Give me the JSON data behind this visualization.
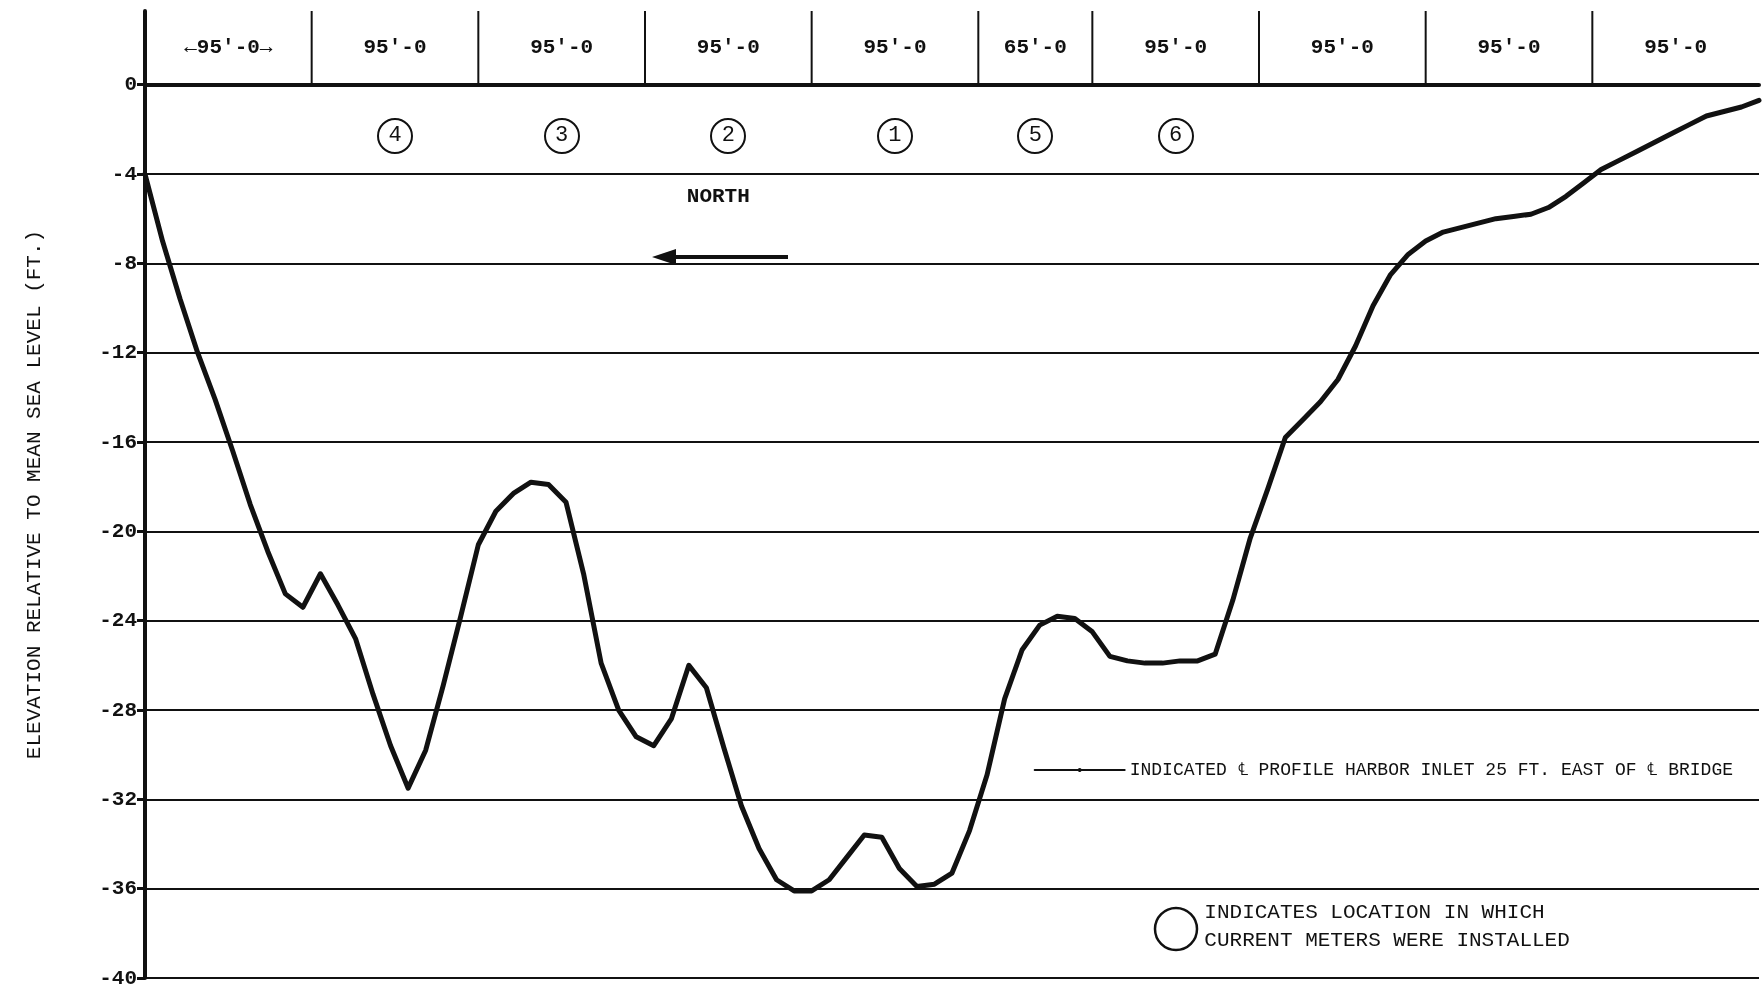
{
  "chart_data": {
    "type": "line",
    "ylabel": "ELEVATION RELATIVE TO MEAN SEA LEVEL (FT.)",
    "categories": [
      null,
      null,
      null,
      null,
      null,
      null,
      null,
      null,
      null,
      null,
      null,
      null,
      null,
      null,
      null,
      null,
      null,
      null,
      null,
      null,
      null,
      null,
      null,
      null,
      null,
      null,
      null,
      null,
      null,
      null,
      null,
      null,
      null,
      null,
      null,
      null,
      null,
      null,
      null,
      null,
      null,
      null,
      null,
      null,
      null,
      null,
      null,
      null,
      null,
      null,
      null,
      null,
      null,
      null,
      null,
      null,
      null,
      null,
      null,
      null,
      null,
      null,
      null,
      null,
      null,
      null,
      null,
      null,
      null,
      null,
      null,
      null,
      null,
      null,
      null,
      null,
      null,
      null,
      null,
      null,
      null,
      null,
      null,
      null,
      null,
      null,
      null,
      null,
      null,
      null,
      null,
      null,
      null
    ],
    "series": [
      {
        "name": "INDICATED ℄ PROFILE HARBOR INLET 25 FT. EAST OF ℄ BRIDGE",
        "color": "#111111",
        "values": [
          -4.0,
          -7.0,
          -9.6,
          -12.0,
          -14.1,
          -16.4,
          -18.8,
          -20.9,
          -22.8,
          -23.4,
          -21.9,
          -23.3,
          -24.8,
          -27.3,
          -29.6,
          -31.5,
          -29.8,
          -26.9,
          -23.8,
          -20.6,
          -19.1,
          -18.3,
          -17.8,
          -17.9,
          -18.7,
          -21.9,
          -25.9,
          -28.0,
          -29.2,
          -29.6,
          -28.4,
          -26.0,
          -27.0,
          -29.7,
          -32.3,
          -34.2,
          -35.6,
          -36.1,
          -36.1,
          -35.6,
          -34.6,
          -33.6,
          -33.7,
          -35.1,
          -35.9,
          -35.8,
          -35.3,
          -33.4,
          -30.9,
          -27.5,
          -25.3,
          -24.2,
          -23.8,
          -23.9,
          -24.5,
          -25.6,
          -25.8,
          -25.9,
          -25.9,
          -25.8,
          -25.8,
          -25.5,
          -23.1,
          -20.3,
          -18.1,
          -15.8,
          -15.0,
          -14.2,
          -13.2,
          -11.7,
          -9.9,
          -8.5,
          -7.6,
          -7.0,
          -6.6,
          -6.4,
          -6.2,
          -6.0,
          -5.9,
          -5.8,
          -5.5,
          -5.0,
          -4.4,
          -3.8,
          -3.4,
          -3.0,
          -2.6,
          -2.2,
          -1.8,
          -1.4,
          -1.2,
          -1.0,
          -0.7
        ]
      }
    ],
    "ylim": [
      -40,
      3.3
    ],
    "yticks": [
      0,
      -4,
      -8,
      -12,
      -16,
      -20,
      -24,
      -28,
      -32,
      -36,
      -40
    ],
    "annotations": [
      "←95'-0→",
      "95'-0",
      "95'-0",
      "95'-0",
      "95'-0",
      "65'-0",
      "95'-0",
      "95'-0",
      "95'-0",
      "95'-0",
      "4",
      "3",
      "2",
      "1",
      "5",
      "6",
      "NORTH",
      "INDICATES LOCATION IN WHICH CURRENT METERS WERE INSTALLED"
    ],
    "grid": "y",
    "legend": "bottom right",
    "marker": "none",
    "line_style": "solid"
  }
}
